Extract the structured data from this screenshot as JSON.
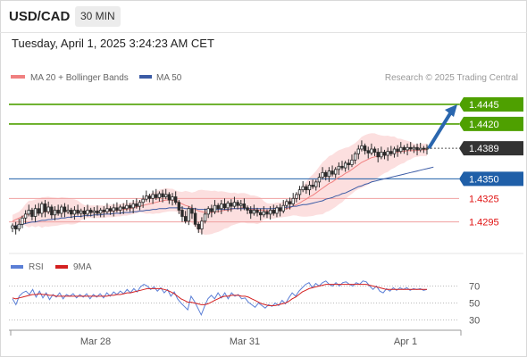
{
  "header": {
    "symbol": "USD/CAD",
    "interval": "30 MIN",
    "datetime": "Tuesday, April 1, 2025 3:24:23 AM CET"
  },
  "legend": {
    "ma20_bb": "MA 20 + Bollinger Bands",
    "ma50": "MA 50",
    "credit": "Research © 2025 Trading Central",
    "rsi": "RSI",
    "rsi_ma": "9MA"
  },
  "colors": {
    "ma20": "#f08080",
    "ma50": "#3b5ba5",
    "band_fill": "#fbd4d4",
    "green": "#4ea000",
    "blue_level": "#1f5fa8",
    "red_level": "#e01010",
    "candle": "#2a2a2a",
    "arrow": "#2a66ae",
    "rsi_line": "#5b7fd6",
    "rsi_ma_line": "#d42020"
  },
  "chart_data": [
    {
      "type": "candlestick",
      "title": "USD/CAD 30 MIN",
      "x_tick_labels": [
        "Mar 28",
        "Mar 31",
        "Apr 1"
      ],
      "ylim": [
        1.4265,
        1.447
      ],
      "levels": [
        {
          "value": 1.4445,
          "label": "1.4445",
          "kind": "target"
        },
        {
          "value": 1.442,
          "label": "1.4420",
          "kind": "target"
        },
        {
          "value": 1.4389,
          "label": "1.4389",
          "kind": "last"
        },
        {
          "value": 1.435,
          "label": "1.4350",
          "kind": "pivot"
        },
        {
          "value": 1.4325,
          "label": "1.4325",
          "kind": "support"
        },
        {
          "value": 1.4295,
          "label": "1.4295",
          "kind": "support"
        }
      ],
      "closes": [
        1.429,
        1.4286,
        1.4292,
        1.43,
        1.4305,
        1.431,
        1.4302,
        1.4312,
        1.4306,
        1.4318,
        1.4308,
        1.4314,
        1.4304,
        1.431,
        1.4306,
        1.4314,
        1.4308,
        1.431,
        1.4305,
        1.431,
        1.4306,
        1.4309,
        1.4305,
        1.431,
        1.4307,
        1.4309,
        1.4306,
        1.431,
        1.4308,
        1.4312,
        1.4309,
        1.4313,
        1.431,
        1.4314,
        1.4312,
        1.4316,
        1.4313,
        1.4318,
        1.4315,
        1.432,
        1.4324,
        1.4328,
        1.4325,
        1.433,
        1.4326,
        1.4331,
        1.4327,
        1.433,
        1.4323,
        1.4327,
        1.432,
        1.431,
        1.4302,
        1.4296,
        1.4312,
        1.4306,
        1.4292,
        1.4286,
        1.4296,
        1.4305,
        1.4312,
        1.4308,
        1.4316,
        1.4312,
        1.4318,
        1.4313,
        1.4319,
        1.4315,
        1.432,
        1.4316,
        1.4318,
        1.4313,
        1.431,
        1.4306,
        1.431,
        1.4307,
        1.4304,
        1.4308,
        1.4305,
        1.431,
        1.4306,
        1.4313,
        1.4309,
        1.4316,
        1.4321,
        1.4318,
        1.4325,
        1.433,
        1.4336,
        1.434,
        1.4336,
        1.4342,
        1.434,
        1.4346,
        1.4352,
        1.4358,
        1.4353,
        1.436,
        1.4356,
        1.4362,
        1.4366,
        1.4364,
        1.437,
        1.4368,
        1.4374,
        1.4382,
        1.4388,
        1.4392,
        1.4386,
        1.4383,
        1.4388,
        1.4384,
        1.4378,
        1.4384,
        1.438,
        1.4385,
        1.4382,
        1.4388,
        1.4385,
        1.439,
        1.4387,
        1.439,
        1.4388,
        1.439,
        1.4387,
        1.4389,
        1.4388,
        1.4389
      ],
      "ma20": [
        1.4296,
        1.4298,
        1.43,
        1.4302,
        1.4304,
        1.4305,
        1.4306,
        1.4306,
        1.4307,
        1.4307,
        1.4308,
        1.4308,
        1.4308,
        1.4308,
        1.4308,
        1.4309,
        1.4309,
        1.4309,
        1.4308,
        1.4308,
        1.4308,
        1.4308,
        1.4308,
        1.4308,
        1.4308,
        1.4308,
        1.4308,
        1.4308,
        1.4308,
        1.4309,
        1.4309,
        1.4309,
        1.431,
        1.431,
        1.4311,
        1.4311,
        1.4312,
        1.4313,
        1.4314,
        1.4315,
        1.4316,
        1.4317,
        1.4318,
        1.4319,
        1.432,
        1.4321,
        1.4322,
        1.4323,
        1.4323,
        1.4323,
        1.4322,
        1.432,
        1.4318,
        1.4316,
        1.4315,
        1.4313,
        1.4311,
        1.4309,
        1.4308,
        1.4307,
        1.4307,
        1.4307,
        1.4308,
        1.4308,
        1.4309,
        1.431,
        1.431,
        1.4311,
        1.4312,
        1.4312,
        1.4313,
        1.4313,
        1.4312,
        1.4311,
        1.4311,
        1.431,
        1.431,
        1.431,
        1.4309,
        1.4309,
        1.4309,
        1.431,
        1.431,
        1.4311,
        1.4312,
        1.4313,
        1.4315,
        1.4317,
        1.4319,
        1.4322,
        1.4324,
        1.4327,
        1.4329,
        1.4332,
        1.4335,
        1.4338,
        1.4341,
        1.4344,
        1.4346,
        1.4349,
        1.4352,
        1.4354,
        1.4357,
        1.4359,
        1.4362,
        1.4365,
        1.4368,
        1.4371,
        1.4373,
        1.4375,
        1.4377,
        1.4378,
        1.4379,
        1.438,
        1.4381,
        1.4382,
        1.4383,
        1.4384,
        1.4384,
        1.4385,
        1.4385,
        1.4386,
        1.4386,
        1.4386,
        1.4386,
        1.4387,
        1.4387,
        1.4387
      ],
      "ma50": [
        1.4289,
        1.429,
        1.4291,
        1.4292,
        1.4293,
        1.4294,
        1.4295,
        1.4295,
        1.4296,
        1.4297,
        1.4297,
        1.4298,
        1.4298,
        1.4299,
        1.4299,
        1.43,
        1.43,
        1.4301,
        1.4301,
        1.4302,
        1.4302,
        1.4302,
        1.4303,
        1.4303,
        1.4303,
        1.4304,
        1.4304,
        1.4304,
        1.4305,
        1.4305,
        1.4305,
        1.4306,
        1.4306,
        1.4306,
        1.4307,
        1.4307,
        1.4307,
        1.4308,
        1.4308,
        1.4309,
        1.4309,
        1.431,
        1.431,
        1.4311,
        1.4311,
        1.4312,
        1.4312,
        1.4312,
        1.4313,
        1.4313,
        1.4313,
        1.4313,
        1.4313,
        1.4312,
        1.4312,
        1.4312,
        1.4312,
        1.4311,
        1.4311,
        1.4311,
        1.4311,
        1.4311,
        1.4311,
        1.4311,
        1.4311,
        1.4311,
        1.4311,
        1.4312,
        1.4312,
        1.4312,
        1.4312,
        1.4312,
        1.4312,
        1.4312,
        1.4312,
        1.4312,
        1.4312,
        1.4312,
        1.4312,
        1.4312,
        1.4312,
        1.4313,
        1.4313,
        1.4313,
        1.4314,
        1.4314,
        1.4315,
        1.4315,
        1.4316,
        1.4317,
        1.4317,
        1.4318,
        1.4319,
        1.432,
        1.4321,
        1.4322,
        1.4324,
        1.4325,
        1.4326,
        1.4328,
        1.4329,
        1.4331,
        1.4332,
        1.4334,
        1.4336,
        1.4338,
        1.434,
        1.4341,
        1.4343,
        1.4344,
        1.4346,
        1.4347,
        1.4348,
        1.4349,
        1.435,
        1.4351,
        1.4352,
        1.4353,
        1.4354,
        1.4355,
        1.4356,
        1.4357,
        1.4358,
        1.4359,
        1.436,
        1.4361,
        1.4362,
        1.4363,
        1.4364,
        1.4365
      ]
    },
    {
      "type": "line",
      "title": "RSI",
      "yticks": [
        70,
        50,
        30
      ],
      "ylim": [
        20,
        80
      ],
      "series": [
        {
          "name": "RSI",
          "values": [
            55,
            48,
            58,
            62,
            64,
            60,
            66,
            57,
            64,
            56,
            62,
            54,
            60,
            57,
            62,
            55,
            60,
            58,
            61,
            56,
            60,
            57,
            61,
            55,
            60,
            57,
            61,
            56,
            62,
            58,
            63,
            60,
            64,
            61,
            66,
            62,
            67,
            63,
            69,
            72,
            70,
            66,
            69,
            64,
            68,
            62,
            66,
            58,
            63,
            55,
            50,
            46,
            42,
            58,
            52,
            44,
            36,
            46,
            55,
            59,
            55,
            62,
            56,
            62,
            55,
            62,
            58,
            60,
            55,
            56,
            51,
            48,
            45,
            50,
            47,
            44,
            48,
            46,
            50,
            47,
            53,
            49,
            56,
            62,
            58,
            64,
            68,
            72,
            74,
            68,
            73,
            70,
            74,
            76,
            72,
            70,
            74,
            70,
            74,
            75,
            72,
            70,
            74,
            72,
            76,
            75,
            70,
            66,
            70,
            64,
            62,
            67,
            64,
            68,
            65,
            68,
            66,
            68,
            65,
            67,
            66,
            67,
            65,
            66
          ]
        },
        {
          "name": "9MA",
          "values": [
            56,
            55,
            56,
            57,
            58,
            59,
            60,
            60,
            61,
            60,
            60,
            59,
            59,
            58,
            58,
            58,
            58,
            58,
            58,
            58,
            58,
            58,
            58,
            58,
            58,
            58,
            58,
            58,
            58,
            59,
            59,
            60,
            60,
            61,
            62,
            62,
            63,
            64,
            65,
            66,
            67,
            67,
            67,
            67,
            67,
            66,
            65,
            63,
            61,
            58,
            55,
            53,
            51,
            51,
            50,
            49,
            48,
            48,
            49,
            51,
            53,
            55,
            57,
            58,
            58,
            59,
            59,
            59,
            58,
            58,
            57,
            55,
            53,
            51,
            49,
            48,
            47,
            47,
            47,
            48,
            49,
            50,
            52,
            55,
            57,
            60,
            63,
            65,
            67,
            68,
            69,
            70,
            71,
            72,
            72,
            72,
            72,
            72,
            72,
            72,
            72,
            72,
            72,
            72,
            72,
            72,
            71,
            70,
            69,
            68,
            67,
            66,
            66,
            66,
            66,
            66,
            66,
            66,
            66,
            66,
            66,
            66,
            66,
            66
          ]
        }
      ]
    }
  ]
}
